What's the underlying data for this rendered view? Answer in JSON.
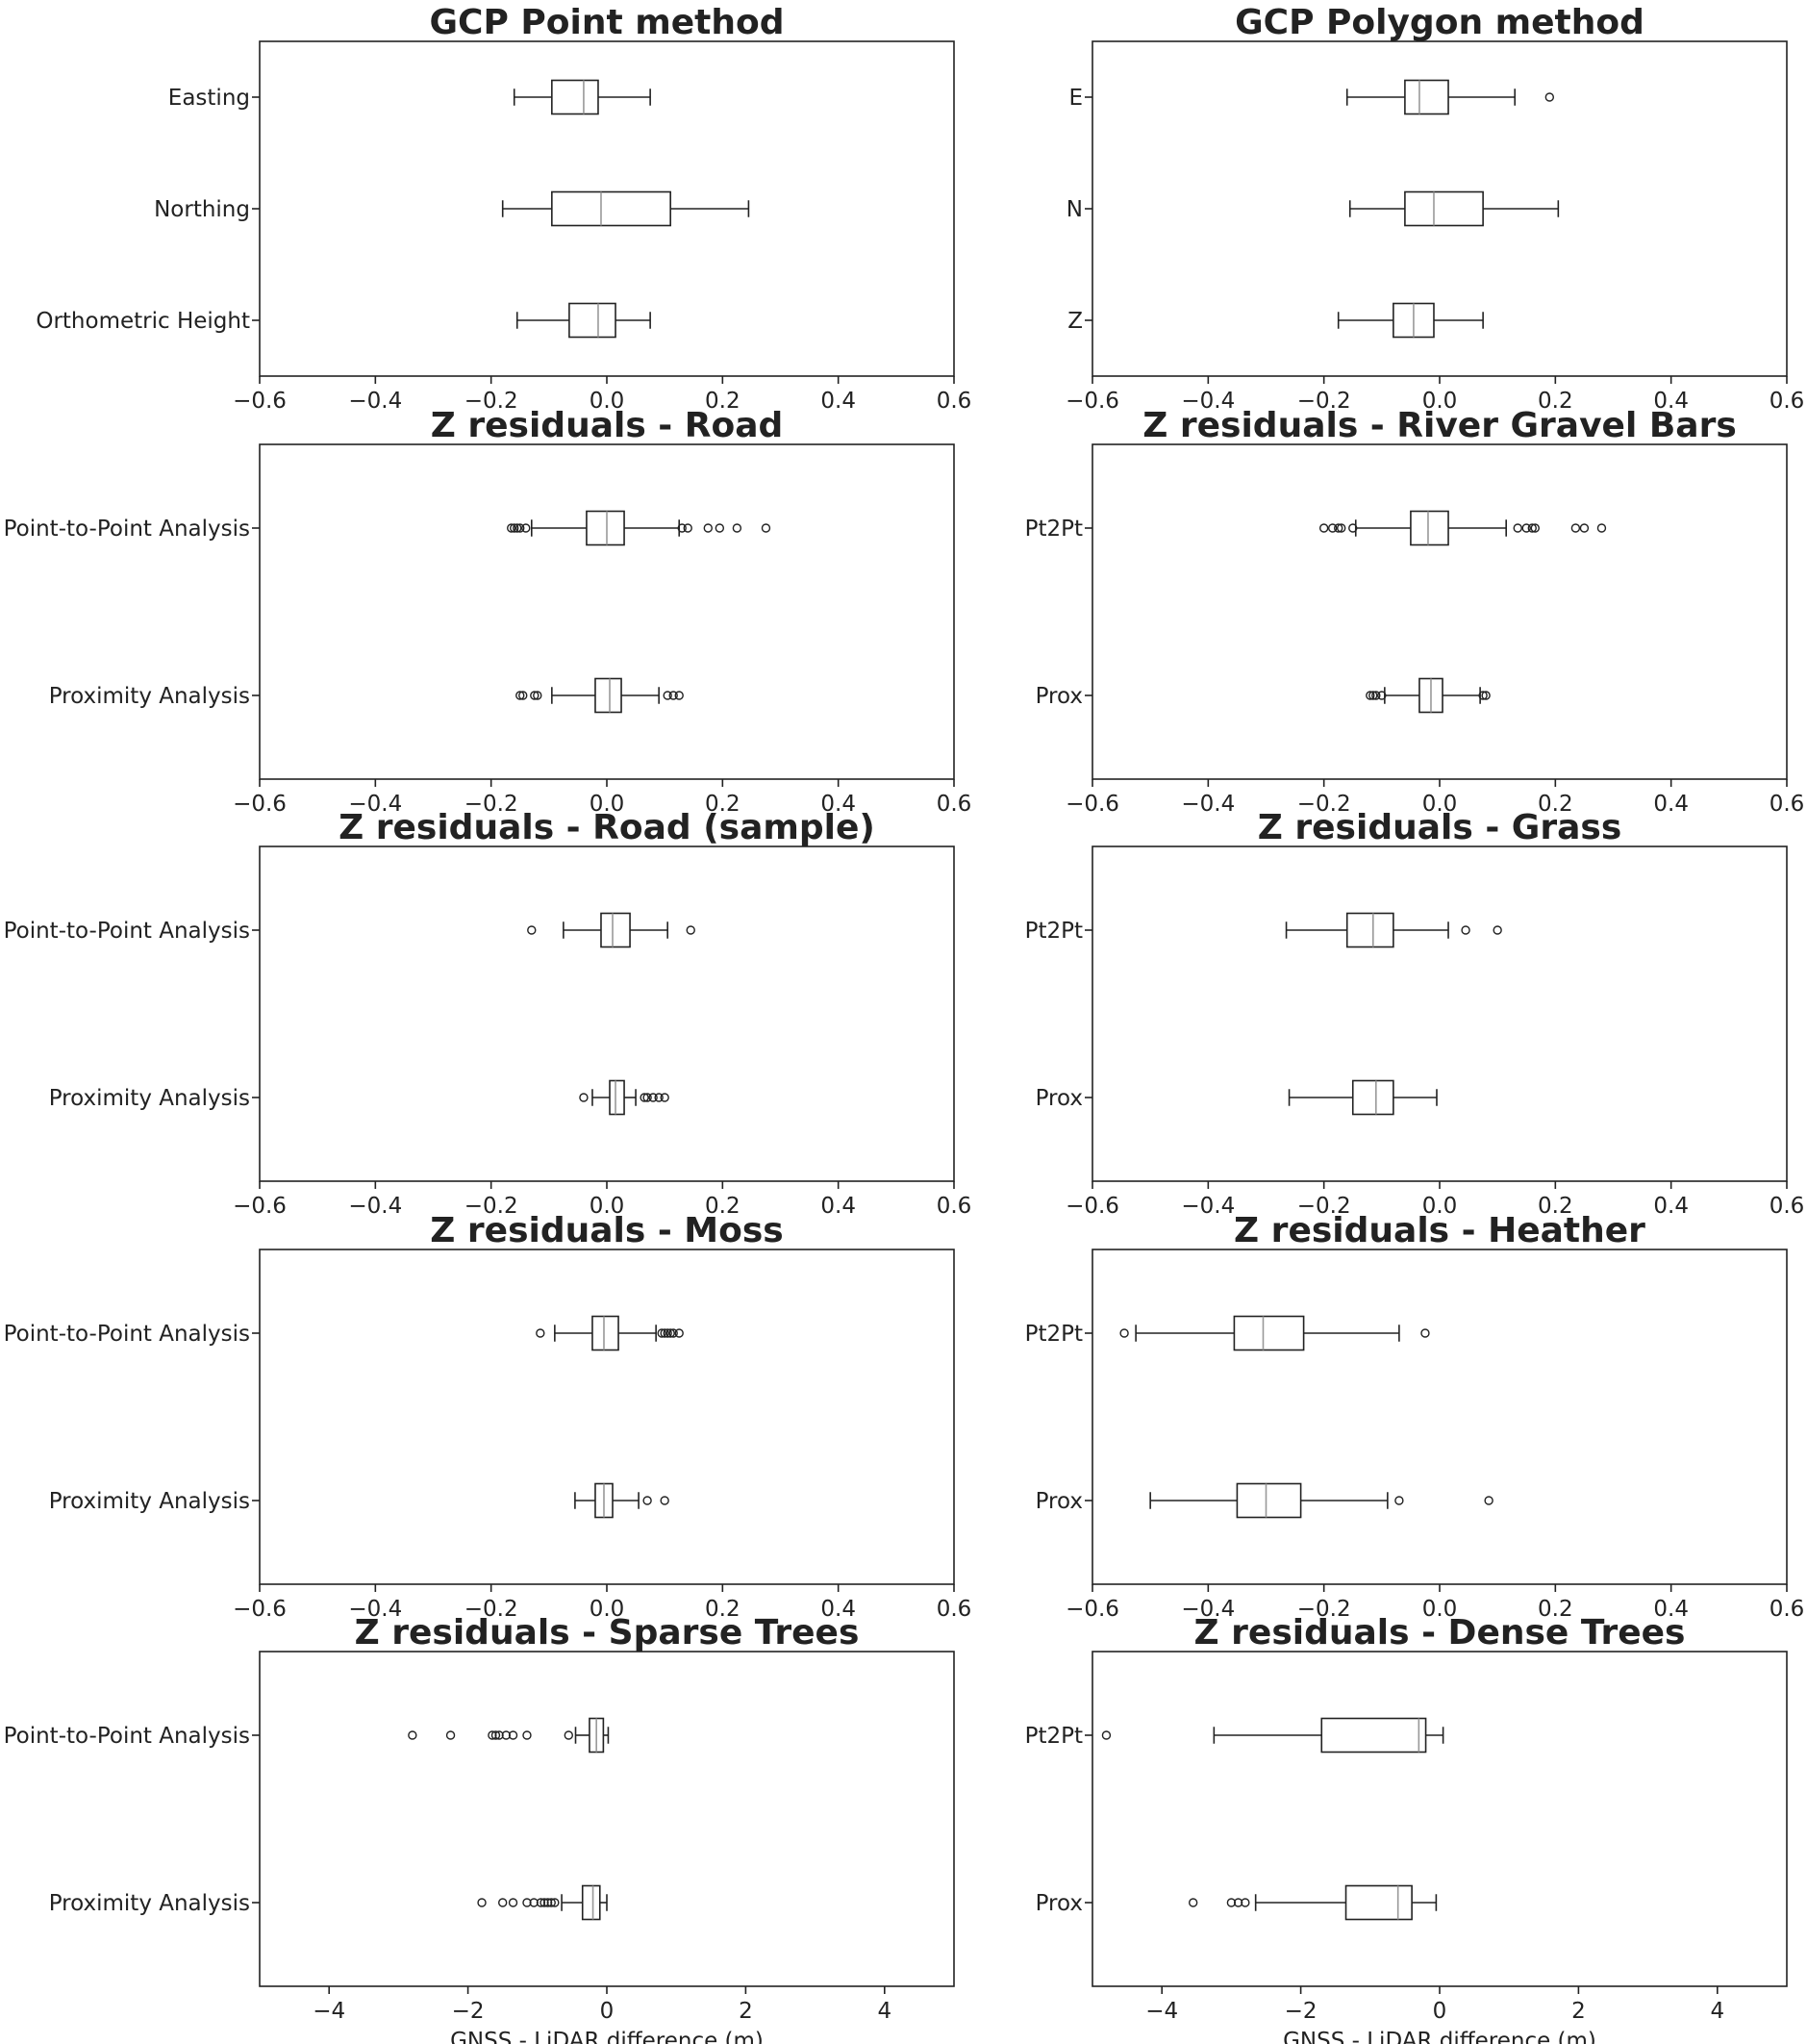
{
  "chart_data": [
    {
      "type": "box",
      "title": "GCP Point method",
      "xlabel": "",
      "xlim": [
        -0.6,
        0.6
      ],
      "xticks": [
        -0.6,
        -0.4,
        -0.2,
        0.0,
        0.2,
        0.4,
        0.6
      ],
      "xtick_labels": [
        "−0.6",
        "−0.4",
        "−0.2",
        "0.0",
        "0.2",
        "0.4",
        "0.6"
      ],
      "categories": [
        "Easting",
        "Northing",
        "Orthometric Height"
      ],
      "boxes": [
        {
          "whislo": -0.16,
          "q1": -0.095,
          "med": -0.04,
          "q3": -0.015,
          "whishi": 0.075,
          "fliers": []
        },
        {
          "whislo": -0.18,
          "q1": -0.095,
          "med": -0.01,
          "q3": 0.11,
          "whishi": 0.245,
          "fliers": []
        },
        {
          "whislo": -0.155,
          "q1": -0.065,
          "med": -0.015,
          "q3": 0.015,
          "whishi": 0.075,
          "fliers": []
        }
      ]
    },
    {
      "type": "box",
      "title": "GCP Polygon method",
      "xlabel": "",
      "xlim": [
        -0.6,
        0.6
      ],
      "xticks": [
        -0.6,
        -0.4,
        -0.2,
        0.0,
        0.2,
        0.4,
        0.6
      ],
      "xtick_labels": [
        "−0.6",
        "−0.4",
        "−0.2",
        "0.0",
        "0.2",
        "0.4",
        "0.6"
      ],
      "categories": [
        "E",
        "N",
        "Z"
      ],
      "boxes": [
        {
          "whislo": -0.16,
          "q1": -0.06,
          "med": -0.035,
          "q3": 0.015,
          "whishi": 0.13,
          "fliers": [
            0.19
          ]
        },
        {
          "whislo": -0.155,
          "q1": -0.06,
          "med": -0.01,
          "q3": 0.075,
          "whishi": 0.205,
          "fliers": []
        },
        {
          "whislo": -0.175,
          "q1": -0.08,
          "med": -0.045,
          "q3": -0.01,
          "whishi": 0.075,
          "fliers": []
        }
      ]
    },
    {
      "type": "box",
      "title": "Z residuals - Road",
      "xlabel": "",
      "xlim": [
        -0.6,
        0.6
      ],
      "xticks": [
        -0.6,
        -0.4,
        -0.2,
        0.0,
        0.2,
        0.4,
        0.6
      ],
      "xtick_labels": [
        "−0.6",
        "−0.4",
        "−0.2",
        "0.0",
        "0.2",
        "0.4",
        "0.6"
      ],
      "categories": [
        "Point-to-Point Analysis",
        "Proximity Analysis"
      ],
      "boxes": [
        {
          "whislo": -0.13,
          "q1": -0.035,
          "med": 0.0,
          "q3": 0.03,
          "whishi": 0.125,
          "fliers": [
            -0.165,
            -0.16,
            -0.155,
            -0.15,
            -0.14,
            0.13,
            0.14,
            0.175,
            0.195,
            0.225,
            0.275
          ]
        },
        {
          "whislo": -0.095,
          "q1": -0.02,
          "med": 0.005,
          "q3": 0.025,
          "whishi": 0.09,
          "fliers": [
            -0.15,
            -0.145,
            -0.125,
            -0.12,
            0.105,
            0.115,
            0.125
          ]
        }
      ]
    },
    {
      "type": "box",
      "title": "Z residuals - River Gravel Bars",
      "xlabel": "",
      "xlim": [
        -0.6,
        0.6
      ],
      "xticks": [
        -0.6,
        -0.4,
        -0.2,
        0.0,
        0.2,
        0.4,
        0.6
      ],
      "xtick_labels": [
        "−0.6",
        "−0.4",
        "−0.2",
        "0.0",
        "0.2",
        "0.4",
        "0.6"
      ],
      "categories": [
        "Pt2Pt",
        "Prox"
      ],
      "boxes": [
        {
          "whislo": -0.145,
          "q1": -0.05,
          "med": -0.02,
          "q3": 0.015,
          "whishi": 0.115,
          "fliers": [
            -0.2,
            -0.185,
            -0.175,
            -0.17,
            -0.15,
            0.135,
            0.15,
            0.16,
            0.165,
            0.235,
            0.25,
            0.28
          ]
        },
        {
          "whislo": -0.095,
          "q1": -0.035,
          "med": -0.015,
          "q3": 0.005,
          "whishi": 0.07,
          "fliers": [
            -0.12,
            -0.115,
            -0.11,
            -0.1,
            0.075,
            0.08
          ]
        }
      ]
    },
    {
      "type": "box",
      "title": "Z residuals - Road (sample)",
      "xlabel": "",
      "xlim": [
        -0.6,
        0.6
      ],
      "xticks": [
        -0.6,
        -0.4,
        -0.2,
        0.0,
        0.2,
        0.4,
        0.6
      ],
      "xtick_labels": [
        "−0.6",
        "−0.4",
        "−0.2",
        "0.0",
        "0.2",
        "0.4",
        "0.6"
      ],
      "categories": [
        "Point-to-Point Analysis",
        "Proximity Analysis"
      ],
      "boxes": [
        {
          "whislo": -0.075,
          "q1": -0.01,
          "med": 0.01,
          "q3": 0.04,
          "whishi": 0.105,
          "fliers": [
            -0.13,
            0.145
          ]
        },
        {
          "whislo": -0.025,
          "q1": 0.005,
          "med": 0.015,
          "q3": 0.03,
          "whishi": 0.05,
          "fliers": [
            -0.04,
            0.065,
            0.07,
            0.08,
            0.09,
            0.1
          ]
        }
      ]
    },
    {
      "type": "box",
      "title": "Z residuals - Grass",
      "xlabel": "",
      "xlim": [
        -0.6,
        0.6
      ],
      "xticks": [
        -0.6,
        -0.4,
        -0.2,
        0.0,
        0.2,
        0.4,
        0.6
      ],
      "xtick_labels": [
        "−0.6",
        "−0.4",
        "−0.2",
        "0.0",
        "0.2",
        "0.4",
        "0.6"
      ],
      "categories": [
        "Pt2Pt",
        "Prox"
      ],
      "boxes": [
        {
          "whislo": -0.265,
          "q1": -0.16,
          "med": -0.115,
          "q3": -0.08,
          "whishi": 0.015,
          "fliers": [
            0.045,
            0.1
          ]
        },
        {
          "whislo": -0.26,
          "q1": -0.15,
          "med": -0.11,
          "q3": -0.08,
          "whishi": -0.005,
          "fliers": []
        }
      ]
    },
    {
      "type": "box",
      "title": "Z residuals - Moss",
      "xlabel": "",
      "xlim": [
        -0.6,
        0.6
      ],
      "xticks": [
        -0.6,
        -0.4,
        -0.2,
        0.0,
        0.2,
        0.4,
        0.6
      ],
      "xtick_labels": [
        "−0.6",
        "−0.4",
        "−0.2",
        "0.0",
        "0.2",
        "0.4",
        "0.6"
      ],
      "categories": [
        "Point-to-Point Analysis",
        "Proximity Analysis"
      ],
      "boxes": [
        {
          "whislo": -0.09,
          "q1": -0.025,
          "med": -0.005,
          "q3": 0.02,
          "whishi": 0.085,
          "fliers": [
            -0.115,
            0.095,
            0.1,
            0.105,
            0.11,
            0.115,
            0.125
          ]
        },
        {
          "whislo": -0.055,
          "q1": -0.02,
          "med": -0.005,
          "q3": 0.01,
          "whishi": 0.055,
          "fliers": [
            0.07,
            0.1
          ]
        }
      ]
    },
    {
      "type": "box",
      "title": "Z residuals - Heather",
      "xlabel": "",
      "xlim": [
        -0.6,
        0.6
      ],
      "xticks": [
        -0.6,
        -0.4,
        -0.2,
        0.0,
        0.2,
        0.4,
        0.6
      ],
      "xtick_labels": [
        "−0.6",
        "−0.4",
        "−0.2",
        "0.0",
        "0.2",
        "0.4",
        "0.6"
      ],
      "categories": [
        "Pt2Pt",
        "Prox"
      ],
      "boxes": [
        {
          "whislo": -0.525,
          "q1": -0.355,
          "med": -0.305,
          "q3": -0.235,
          "whishi": -0.07,
          "fliers": [
            -0.545,
            -0.025
          ]
        },
        {
          "whislo": -0.5,
          "q1": -0.35,
          "med": -0.3,
          "q3": -0.24,
          "whishi": -0.09,
          "fliers": [
            -0.07,
            0.085
          ]
        }
      ]
    },
    {
      "type": "box",
      "title": "Z residuals - Sparse Trees",
      "xlabel": "GNSS - LiDAR difference (m)",
      "xlim": [
        -5,
        5
      ],
      "xticks": [
        -4,
        -2,
        0,
        2,
        4
      ],
      "xtick_labels": [
        "−4",
        "−2",
        "0",
        "2",
        "4"
      ],
      "categories": [
        "Point-to-Point Analysis",
        "Proximity Analysis"
      ],
      "boxes": [
        {
          "whislo": -0.45,
          "q1": -0.25,
          "med": -0.15,
          "q3": -0.05,
          "whishi": 0.02,
          "fliers": [
            -2.8,
            -2.25,
            -1.65,
            -1.6,
            -1.55,
            -1.45,
            -1.35,
            -1.15,
            -0.55
          ]
        },
        {
          "whislo": -0.65,
          "q1": -0.35,
          "med": -0.2,
          "q3": -0.1,
          "whishi": 0.0,
          "fliers": [
            -1.8,
            -1.5,
            -1.35,
            -1.15,
            -1.05,
            -0.95,
            -0.9,
            -0.85,
            -0.8,
            -0.75
          ]
        }
      ]
    },
    {
      "type": "box",
      "title": "Z residuals - Dense Trees",
      "xlabel": "GNSS - LiDAR difference (m)",
      "xlim": [
        -5,
        5
      ],
      "xticks": [
        -4,
        -2,
        0,
        2,
        4
      ],
      "xtick_labels": [
        "−4",
        "−2",
        "0",
        "2",
        "4"
      ],
      "categories": [
        "Pt2Pt",
        "Prox"
      ],
      "boxes": [
        {
          "whislo": -3.25,
          "q1": -1.7,
          "med": -0.3,
          "q3": -0.2,
          "whishi": 0.05,
          "fliers": [
            -4.8
          ]
        },
        {
          "whislo": -2.65,
          "q1": -1.35,
          "med": -0.6,
          "q3": -0.4,
          "whishi": -0.05,
          "fliers": [
            -3.55,
            -3.0,
            -2.9,
            -2.8
          ]
        }
      ]
    }
  ]
}
